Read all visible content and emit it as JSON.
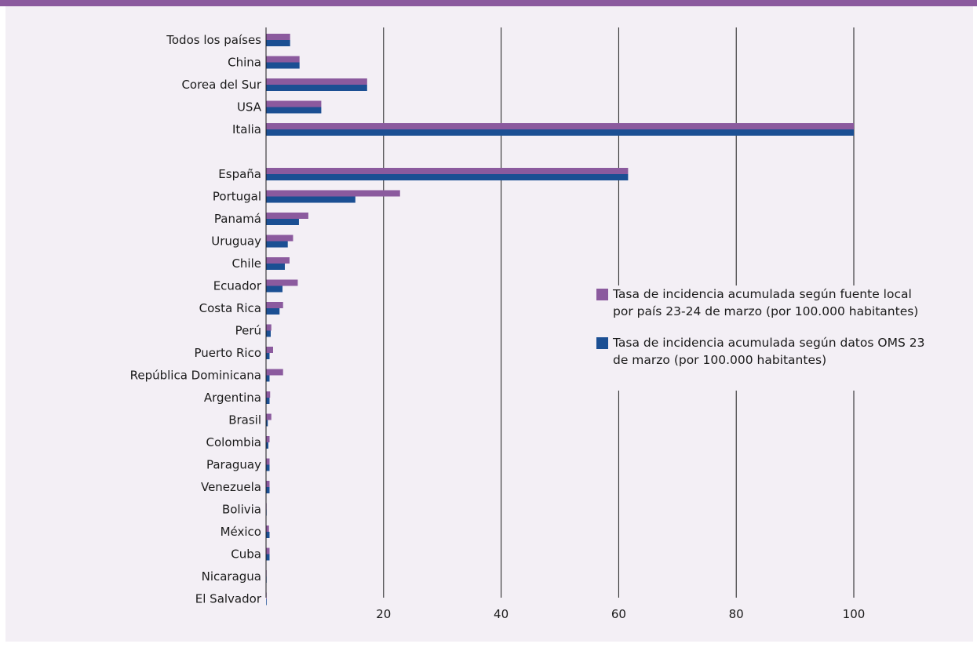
{
  "chart_data": {
    "type": "bar",
    "orientation": "horizontal",
    "categories": [
      "Todos los países",
      "China",
      "Corea del Sur",
      "USA",
      "Italia",
      "",
      "España",
      "Portugal",
      "Panamá",
      "Uruguay",
      "Chile",
      "Ecuador",
      "Costa Rica",
      "Perú",
      "Puerto Rico",
      "República Dominicana",
      "Argentina",
      "Brasil",
      "Colombia",
      "Paraguay",
      "Venezuela",
      "Bolivia",
      "México",
      "Cuba",
      "Nicaragua",
      "El Salvador"
    ],
    "series": [
      {
        "name": "Tasa de incidencia acumulada según fuente local por país 23-24 de marzo (por 100.000 habitantes)",
        "color": "#8b5a9e",
        "values": [
          4.1,
          5.7,
          17.2,
          9.4,
          100,
          null,
          61.6,
          22.8,
          7.2,
          4.6,
          4,
          5.4,
          2.9,
          0.9,
          1.2,
          2.9,
          0.7,
          0.9,
          0.6,
          0.6,
          0.6,
          0.1,
          0.5,
          0.6,
          0.1,
          0.1
        ]
      },
      {
        "name": "Tasa de incidencia acumulada según datos OMS 23 de marzo (por 100.000 habitantes)",
        "color": "#1b4f93",
        "values": [
          4.1,
          5.7,
          17.2,
          9.4,
          100,
          null,
          61.6,
          15.2,
          5.6,
          3.7,
          3.2,
          2.8,
          2.3,
          0.8,
          0.6,
          0.6,
          0.6,
          0.3,
          0.4,
          0.6,
          0.6,
          0.1,
          0.6,
          0.6,
          0.1,
          0.1
        ]
      }
    ],
    "x_ticks": [
      "20",
      "40",
      "60",
      "80",
      "100"
    ],
    "xlim": [
      0,
      100
    ],
    "grid": "vertical",
    "legend_position": "right-middle"
  }
}
